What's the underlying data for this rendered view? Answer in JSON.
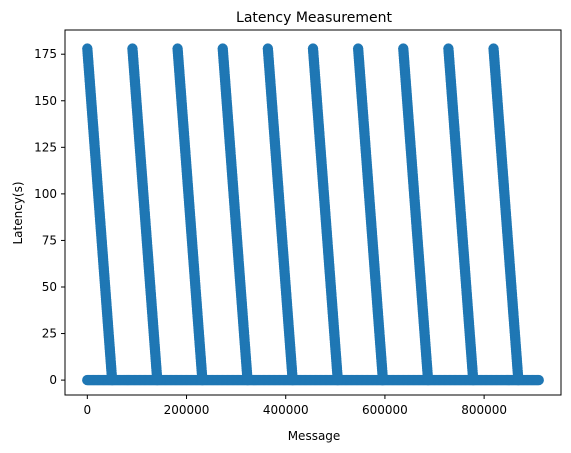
{
  "chart_data": {
    "type": "scatter",
    "title": "Latency Measurement",
    "xlabel": "Message",
    "ylabel": "Latency(s)",
    "xlim": [
      -45000,
      955000
    ],
    "ylim": [
      -8,
      188
    ],
    "xticks": [
      0,
      200000,
      400000,
      600000,
      800000
    ],
    "xtick_labels": [
      "0",
      "200000",
      "400000",
      "600000",
      "800000"
    ],
    "yticks": [
      0,
      25,
      50,
      75,
      100,
      125,
      150,
      175
    ],
    "ytick_labels": [
      "0",
      "25",
      "50",
      "75",
      "100",
      "125",
      "150",
      "175"
    ],
    "grid": false,
    "series": [
      {
        "color": "#1f77b4",
        "marker": "circle",
        "description_segments": [
          {
            "x_start": 0,
            "x_end": 50000,
            "y_start": 178,
            "y_end": 0
          },
          {
            "x_start": 91000,
            "x_end": 141000,
            "y_start": 178,
            "y_end": 0
          },
          {
            "x_start": 182000,
            "x_end": 232000,
            "y_start": 178,
            "y_end": 0
          },
          {
            "x_start": 273000,
            "x_end": 323000,
            "y_start": 178,
            "y_end": 0
          },
          {
            "x_start": 364000,
            "x_end": 414000,
            "y_start": 178,
            "y_end": 0
          },
          {
            "x_start": 455000,
            "x_end": 505000,
            "y_start": 178,
            "y_end": 0
          },
          {
            "x_start": 546000,
            "x_end": 596000,
            "y_start": 178,
            "y_end": 0
          },
          {
            "x_start": 637000,
            "x_end": 687000,
            "y_start": 178,
            "y_end": 0
          },
          {
            "x_start": 728000,
            "x_end": 778000,
            "y_start": 178,
            "y_end": 0
          },
          {
            "x_start": 819000,
            "x_end": 869000,
            "y_start": 178,
            "y_end": 0
          }
        ],
        "baseline": {
          "x_start": 0,
          "x_end": 910000,
          "y": 0
        }
      }
    ]
  }
}
